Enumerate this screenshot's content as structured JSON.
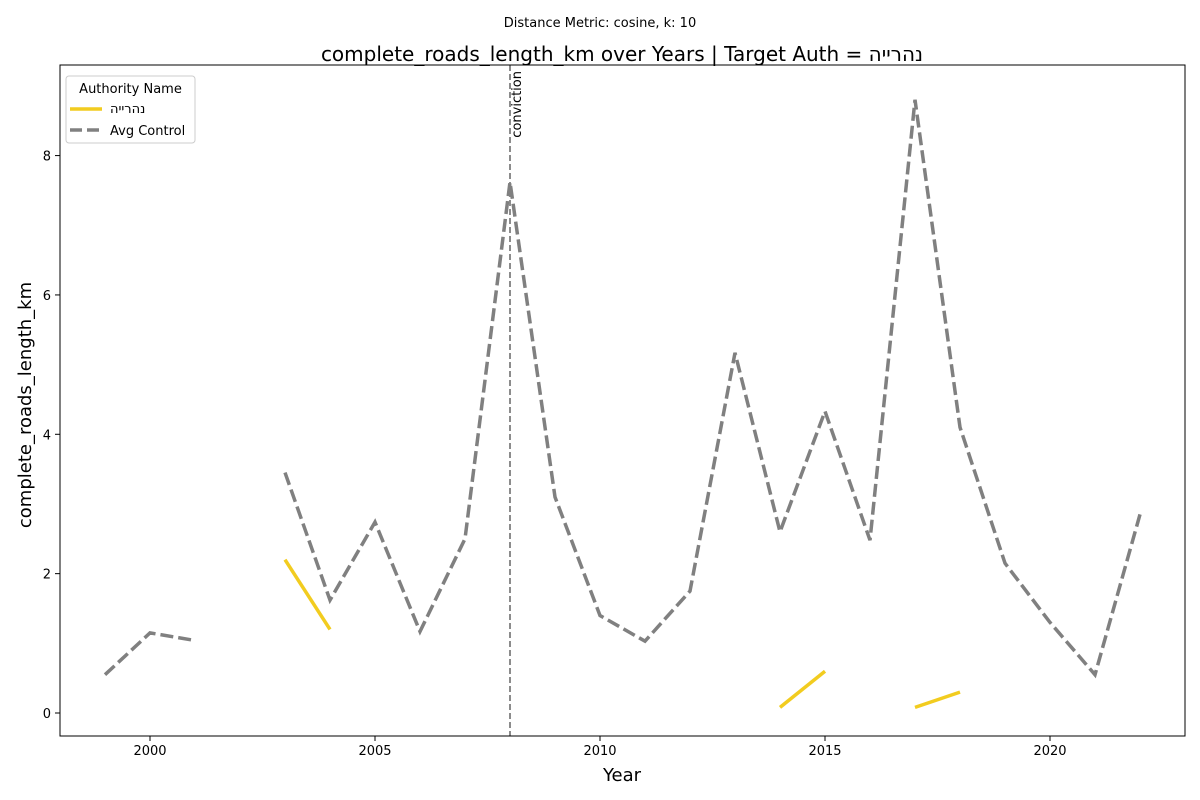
{
  "chart_data": {
    "type": "line",
    "suptitle": "Distance Metric: cosine, k: 10",
    "title": "complete_roads_length_km over Years | Target Auth = נהרייה",
    "xlabel": "Year",
    "ylabel": "complete_roads_length_km",
    "xlim": [
      1998,
      2023
    ],
    "ylim": [
      -0.33,
      9.3
    ],
    "xticks": [
      2000,
      2005,
      2010,
      2015,
      2020
    ],
    "yticks": [
      0,
      2,
      4,
      6,
      8
    ],
    "grid": false,
    "legend": {
      "title": "Authority Name",
      "placement": "top-left"
    },
    "series": [
      {
        "name": "נהרייה",
        "color": "#f2cc1f",
        "style": "solid",
        "points": [
          [
            2003,
            2.2
          ],
          [
            2004,
            1.2
          ],
          null,
          [
            2014,
            0.08
          ],
          [
            2015,
            0.6
          ],
          null,
          [
            2017,
            0.08
          ],
          [
            2018,
            0.3
          ]
        ]
      },
      {
        "name": "Avg Control",
        "color": "#808080",
        "style": "dashed",
        "points": [
          [
            1999,
            0.55
          ],
          [
            2000,
            1.15
          ],
          [
            2001,
            1.04
          ],
          null,
          [
            2003,
            3.45
          ],
          [
            2004,
            1.62
          ],
          [
            2005,
            2.74
          ],
          [
            2006,
            1.17
          ],
          [
            2007,
            2.5
          ],
          [
            2008,
            7.62
          ],
          [
            2009,
            3.1
          ],
          [
            2010,
            1.4
          ],
          [
            2011,
            1.03
          ],
          [
            2012,
            1.75
          ],
          [
            2013,
            5.17
          ],
          [
            2014,
            2.6
          ],
          [
            2015,
            4.33
          ],
          [
            2016,
            2.48
          ],
          [
            2017,
            8.8
          ],
          [
            2018,
            4.1
          ],
          [
            2019,
            2.15
          ],
          [
            2020,
            1.3
          ],
          [
            2021,
            0.55
          ],
          [
            2022,
            2.85
          ]
        ]
      }
    ],
    "annotations": [
      {
        "type": "vline",
        "x": 2008,
        "label": "conviction",
        "color": "#808080"
      }
    ]
  }
}
